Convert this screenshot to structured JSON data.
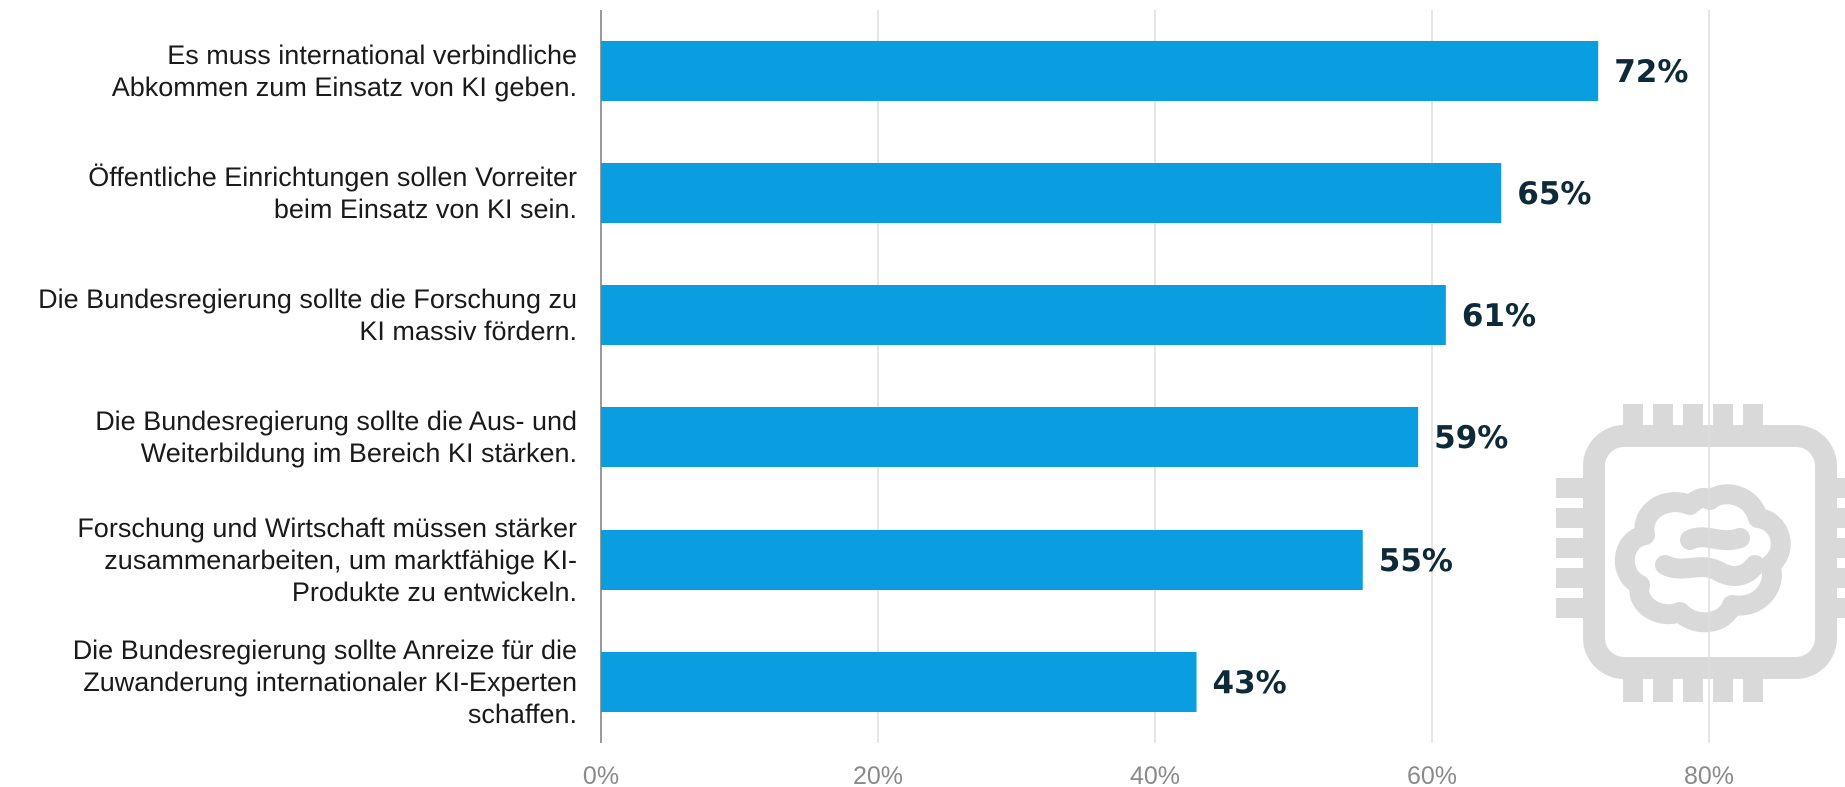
{
  "chart_data": {
    "type": "bar",
    "orientation": "horizontal",
    "categories": [
      "Es muss international verbindliche Abkommen zum Einsatz von KI geben.",
      "Öffentliche Einrichtungen sollen Vorreiter beim Einsatz von KI sein.",
      "Die Bundesregierung sollte die Forschung zu KI massiv fördern.",
      "Die Bundesregierung sollte die Aus- und Weiterbildung im Bereich KI stärken.",
      "Forschung und Wirtschaft müssen stärker zusammenarbeiten, um marktfähige KI-Produkte zu entwickeln.",
      "Die Bundesregierung sollte Anreize für die Zuwanderung internationaler KI-Experten schaffen."
    ],
    "category_lines": [
      [
        "Es muss international verbindliche",
        "Abkommen zum Einsatz von KI geben."
      ],
      [
        "Öffentliche Einrichtungen sollen Vorreiter",
        "beim Einsatz von KI sein."
      ],
      [
        "Die Bundesregierung sollte die Forschung zu",
        "KI massiv fördern."
      ],
      [
        "Die Bundesregierung sollte die Aus- und",
        "Weiterbildung im Bereich KI stärken."
      ],
      [
        "Forschung und Wirtschaft müssen stärker",
        "zusammenarbeiten, um marktfähige KI-",
        "Produkte zu entwickeln."
      ],
      [
        "Die Bundesregierung sollte Anreize für die",
        "Zuwanderung internationaler KI-Experten",
        "schaffen."
      ]
    ],
    "values": [
      72,
      65,
      61,
      59,
      55,
      43
    ],
    "value_labels": [
      "72%",
      "65%",
      "61%",
      "59%",
      "55%",
      "43%"
    ],
    "xlim": [
      0,
      80
    ],
    "x_ticks": [
      0,
      20,
      40,
      60,
      80
    ],
    "x_tick_labels": [
      "0%",
      "20%",
      "40%",
      "60%",
      "80%"
    ],
    "grid": true,
    "title": "",
    "xlabel": "",
    "ylabel": "",
    "bar_color": "#0a9de0",
    "decoration_icon": "chip-brain-icon"
  }
}
